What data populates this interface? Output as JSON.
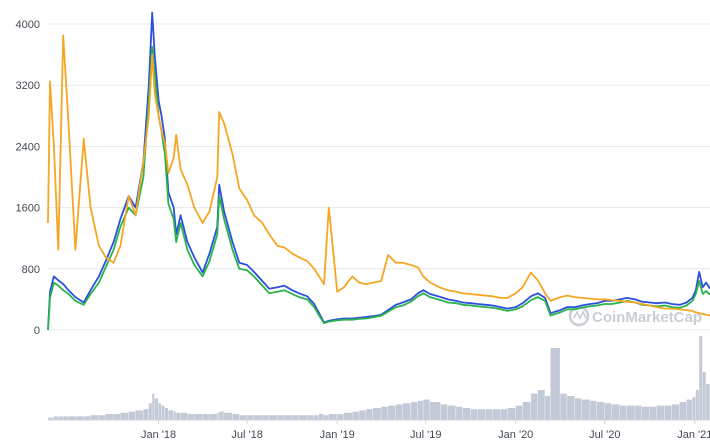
{
  "chart_data": {
    "type": "line",
    "title": "",
    "xlabel": "",
    "ylabel": "",
    "ylim": [
      0,
      4000
    ],
    "y_ticks": [
      "0",
      "800",
      "1600",
      "2400",
      "3200",
      "4000"
    ],
    "x_ticks": [
      "Jan '18",
      "Jul '18",
      "Jan '19",
      "Jul '19",
      "Jan '20",
      "Jul '20",
      "Jan '21"
    ],
    "x_range": [
      "2017-05-20",
      "2021-02-01"
    ],
    "grid": true,
    "legend": "none",
    "watermark": "CoinMarketCap",
    "x": [
      "2017-05-20",
      "2017-05-24",
      "2017-06-01",
      "2017-06-10",
      "2017-06-20",
      "2017-07-01",
      "2017-07-15",
      "2017-08-01",
      "2017-08-15",
      "2017-09-01",
      "2017-09-15",
      "2017-10-01",
      "2017-10-15",
      "2017-11-01",
      "2017-11-15",
      "2017-12-01",
      "2017-12-12",
      "2017-12-19",
      "2017-12-24",
      "2018-01-01",
      "2018-01-07",
      "2018-01-14",
      "2018-01-21",
      "2018-02-01",
      "2018-02-06",
      "2018-02-15",
      "2018-03-01",
      "2018-03-15",
      "2018-04-01",
      "2018-04-15",
      "2018-05-01",
      "2018-05-05",
      "2018-05-15",
      "2018-06-01",
      "2018-06-15",
      "2018-07-01",
      "2018-07-15",
      "2018-08-01",
      "2018-08-15",
      "2018-09-01",
      "2018-09-15",
      "2018-10-01",
      "2018-10-15",
      "2018-11-01",
      "2018-11-15",
      "2018-11-25",
      "2018-12-05",
      "2018-12-15",
      "2019-01-01",
      "2019-01-15",
      "2019-02-01",
      "2019-02-15",
      "2019-03-01",
      "2019-03-15",
      "2019-04-01",
      "2019-04-15",
      "2019-05-01",
      "2019-05-15",
      "2019-06-01",
      "2019-06-15",
      "2019-06-26",
      "2019-07-10",
      "2019-08-01",
      "2019-08-15",
      "2019-09-01",
      "2019-09-15",
      "2019-10-01",
      "2019-10-15",
      "2019-11-01",
      "2019-11-15",
      "2019-12-01",
      "2019-12-15",
      "2020-01-01",
      "2020-01-15",
      "2020-02-01",
      "2020-02-15",
      "2020-03-01",
      "2020-03-12",
      "2020-04-01",
      "2020-04-15",
      "2020-05-01",
      "2020-05-15",
      "2020-06-01",
      "2020-06-15",
      "2020-07-01",
      "2020-07-15",
      "2020-08-01",
      "2020-08-15",
      "2020-09-01",
      "2020-09-15",
      "2020-10-01",
      "2020-10-15",
      "2020-11-01",
      "2020-11-15",
      "2020-12-01",
      "2020-12-15",
      "2020-12-27",
      "2021-01-03",
      "2021-01-10",
      "2021-01-17",
      "2021-01-24",
      "2021-02-01"
    ],
    "series": [
      {
        "color": "#2c4fe0",
        "values": [
          0,
          500,
          700,
          650,
          600,
          520,
          430,
          360,
          520,
          700,
          900,
          1150,
          1450,
          1750,
          1600,
          2200,
          3200,
          4150,
          3600,
          3000,
          2800,
          2500,
          1800,
          1600,
          1250,
          1500,
          1150,
          950,
          750,
          1000,
          1350,
          1900,
          1550,
          1150,
          880,
          850,
          760,
          640,
          540,
          560,
          580,
          520,
          480,
          440,
          340,
          220,
          100,
          120,
          140,
          150,
          150,
          160,
          170,
          180,
          200,
          260,
          330,
          360,
          400,
          480,
          520,
          470,
          430,
          400,
          380,
          360,
          350,
          340,
          330,
          320,
          300,
          280,
          300,
          350,
          440,
          480,
          420,
          220,
          260,
          300,
          300,
          320,
          340,
          350,
          380,
          380,
          400,
          420,
          400,
          370,
          360,
          350,
          360,
          340,
          330,
          360,
          420,
          520,
          760,
          560,
          620,
          540
        ]
      },
      {
        "color": "#29b34a",
        "values": [
          0,
          420,
          620,
          580,
          520,
          470,
          380,
          330,
          470,
          620,
          820,
          1050,
          1350,
          1600,
          1500,
          2000,
          3000,
          3700,
          3350,
          2800,
          2600,
          2300,
          1650,
          1450,
          1150,
          1400,
          1050,
          850,
          700,
          900,
          1250,
          1750,
          1450,
          1050,
          800,
          780,
          700,
          580,
          480,
          500,
          520,
          470,
          430,
          400,
          300,
          190,
          90,
          110,
          125,
          135,
          135,
          145,
          150,
          165,
          185,
          240,
          300,
          320,
          370,
          440,
          480,
          430,
          390,
          360,
          350,
          330,
          320,
          310,
          300,
          290,
          270,
          250,
          270,
          310,
          390,
          430,
          380,
          190,
          230,
          270,
          270,
          290,
          310,
          320,
          340,
          340,
          360,
          380,
          360,
          330,
          320,
          310,
          320,
          300,
          290,
          320,
          380,
          470,
          640,
          470,
          510,
          460
        ]
      },
      {
        "color": "#f5a623",
        "values": [
          1400,
          3250,
          2400,
          1050,
          3850,
          2700,
          1050,
          2500,
          1600,
          1100,
          950,
          880,
          1100,
          1750,
          1500,
          2200,
          2800,
          3600,
          3100,
          2800,
          2600,
          2450,
          2050,
          2250,
          2550,
          2100,
          1900,
          1600,
          1400,
          1550,
          2000,
          2850,
          2700,
          2300,
          1850,
          1700,
          1500,
          1400,
          1250,
          1100,
          1080,
          1000,
          950,
          900,
          800,
          700,
          600,
          1600,
          500,
          560,
          700,
          620,
          600,
          620,
          640,
          980,
          880,
          880,
          850,
          820,
          700,
          620,
          550,
          520,
          500,
          480,
          470,
          460,
          450,
          440,
          420,
          420,
          480,
          560,
          750,
          650,
          480,
          380,
          430,
          450,
          430,
          420,
          410,
          400,
          400,
          390,
          380,
          370,
          360,
          340,
          320,
          300,
          280,
          280,
          270,
          260,
          250,
          230,
          220,
          210,
          200,
          190
        ]
      }
    ],
    "volume": [
      2,
      2,
      3,
      3,
      3,
      3,
      3,
      3,
      4,
      4,
      5,
      5,
      6,
      7,
      8,
      9,
      14,
      22,
      18,
      14,
      12,
      10,
      8,
      7,
      6,
      6,
      5,
      5,
      5,
      5,
      6,
      7,
      6,
      5,
      4,
      4,
      4,
      4,
      4,
      4,
      4,
      4,
      4,
      4,
      4,
      5,
      4,
      5,
      5,
      6,
      7,
      8,
      9,
      10,
      11,
      12,
      13,
      14,
      15,
      16,
      17,
      15,
      13,
      12,
      11,
      10,
      9,
      9,
      9,
      9,
      9,
      10,
      12,
      15,
      22,
      25,
      20,
      60,
      22,
      20,
      18,
      17,
      16,
      15,
      14,
      13,
      12,
      12,
      12,
      11,
      11,
      12,
      12,
      13,
      15,
      17,
      19,
      25,
      70,
      40,
      30,
      28
    ]
  }
}
